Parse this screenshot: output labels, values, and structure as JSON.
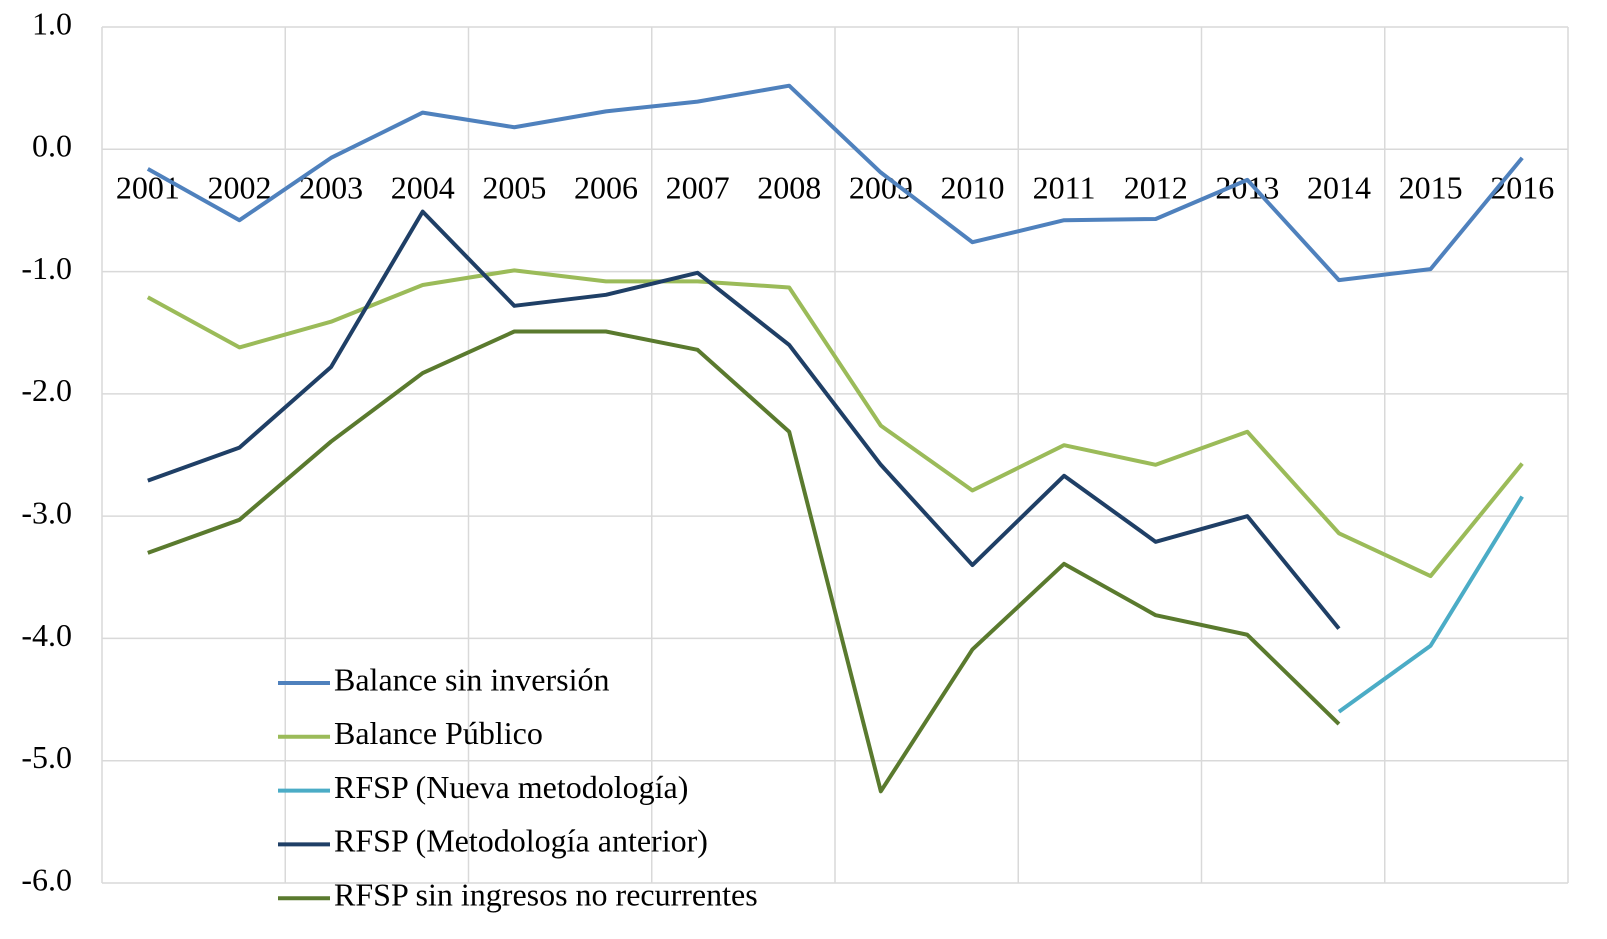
{
  "chart_data": {
    "type": "line",
    "categories": [
      "2001",
      "2002",
      "2003",
      "2004",
      "2005",
      "2006",
      "2007",
      "2008",
      "2009",
      "2010",
      "2011",
      "2012",
      "2013",
      "2014",
      "2015",
      "2016"
    ],
    "series": [
      {
        "name": "Balance sin inversión",
        "color": "#4f81bd",
        "values": [
          -0.16,
          -0.58,
          -0.07,
          0.3,
          0.18,
          0.31,
          0.39,
          0.52,
          -0.19,
          -0.76,
          -0.58,
          -0.57,
          -0.25,
          -1.07,
          -0.98,
          -0.07
        ]
      },
      {
        "name": "Balance Público",
        "color": "#9bbb59",
        "values": [
          -1.21,
          -1.62,
          -1.41,
          -1.11,
          -0.99,
          -1.08,
          -1.08,
          -1.13,
          -2.26,
          -2.79,
          -2.42,
          -2.58,
          -2.31,
          -3.14,
          -3.49,
          -2.57
        ]
      },
      {
        "name": "RFSP (Nueva metodología)",
        "color": "#4bacc6",
        "values": [
          null,
          null,
          null,
          null,
          null,
          null,
          null,
          null,
          null,
          null,
          null,
          null,
          null,
          -4.6,
          -4.06,
          -2.84
        ]
      },
      {
        "name": "RFSP (Metodología anterior)",
        "color": "#1f3f66",
        "values": [
          -2.71,
          -2.44,
          -1.78,
          -0.51,
          -1.28,
          -1.19,
          -1.01,
          -1.6,
          -2.58,
          -3.4,
          -2.67,
          -3.21,
          -3.0,
          -3.92,
          null,
          null
        ]
      },
      {
        "name": "RFSP sin ingresos no recurrentes",
        "color": "#5a7a2e",
        "values": [
          -3.3,
          -3.03,
          -2.39,
          -1.83,
          -1.49,
          -1.49,
          -1.64,
          -2.31,
          -5.25,
          -4.09,
          -3.39,
          -3.81,
          -3.97,
          -4.7,
          null,
          null
        ]
      }
    ],
    "ylim": [
      -6,
      1
    ],
    "yticks": [
      {
        "value": 1,
        "label": "1.0"
      },
      {
        "value": 0,
        "label": "0.0"
      },
      {
        "value": -1,
        "label": "-1.0"
      },
      {
        "value": -2,
        "label": "-2.0"
      },
      {
        "value": -3,
        "label": "-3.0"
      },
      {
        "value": -4,
        "label": "-4.0"
      },
      {
        "value": -5,
        "label": "-5.0"
      },
      {
        "value": -6,
        "label": "-6.0"
      }
    ],
    "grid": true,
    "legend": "lower-left"
  }
}
